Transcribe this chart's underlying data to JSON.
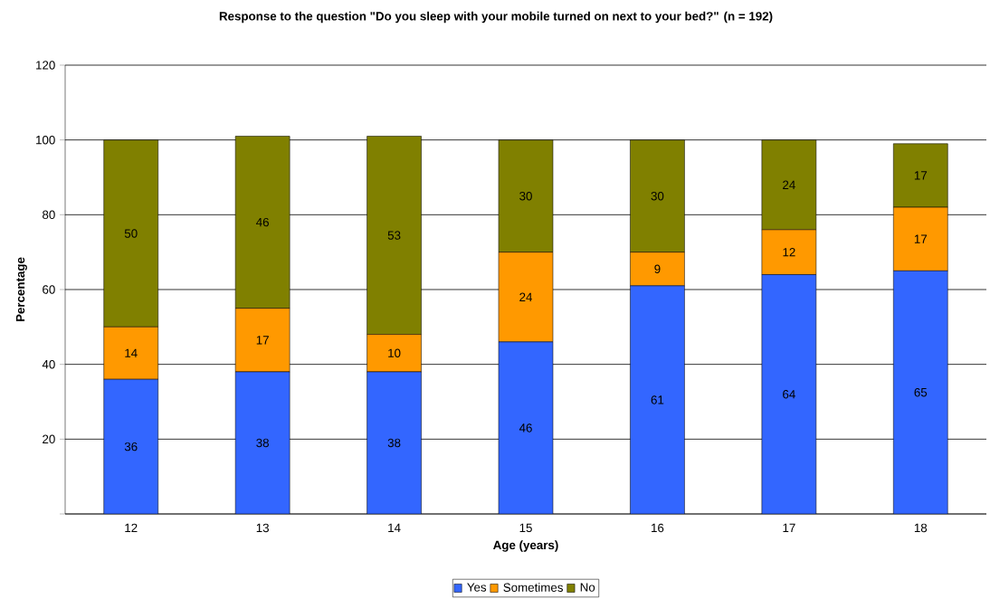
{
  "chart_data": {
    "type": "bar",
    "stacked": true,
    "title": "Response to the question  \"Do you sleep with your mobile turned on next to your bed?\"  (n = 192)",
    "xlabel": "Age (years)",
    "ylabel": "Percentage",
    "categories": [
      "12",
      "13",
      "14",
      "15",
      "16",
      "17",
      "18"
    ],
    "series": [
      {
        "name": "Yes",
        "color": "#3366ff",
        "values": [
          36,
          38,
          38,
          46,
          61,
          64,
          65
        ]
      },
      {
        "name": "Sometimes",
        "color": "#ff9900",
        "values": [
          14,
          17,
          10,
          24,
          9,
          12,
          17
        ]
      },
      {
        "name": "No",
        "color": "#808000",
        "values": [
          50,
          46,
          53,
          30,
          30,
          24,
          17
        ]
      }
    ],
    "ylim": [
      0,
      120
    ],
    "yticks": [
      {
        "value": 0,
        "label": null
      },
      20,
      40,
      60,
      80,
      100,
      120
    ],
    "grid": "y",
    "legend": "bottom",
    "data_labels": true
  }
}
